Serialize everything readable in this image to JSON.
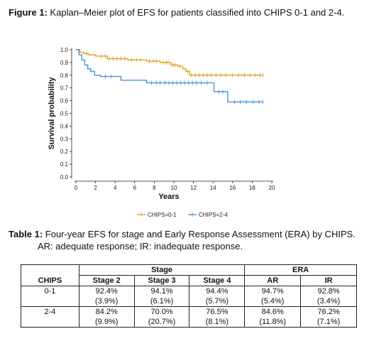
{
  "figure_caption": {
    "label": "Figure 1:",
    "text": " Kaplan–Meier plot of EFS for patients classified into CHIPS 0-1 and 2-4."
  },
  "table_caption": {
    "label": "Table 1:",
    "text": " Four-year EFS for stage and Early Response Assessment (ERA) by CHIPS.",
    "line2": "AR: adequate response; IR: inadequate response."
  },
  "chart_data": {
    "type": "line",
    "xlabel": "Years",
    "ylabel": "Survival probability",
    "xlim": [
      0,
      20
    ],
    "ylim": [
      0,
      1
    ],
    "x_ticks": [
      "0",
      "2",
      "4",
      "6",
      "8",
      "10",
      "12",
      "14",
      "16",
      "18",
      "20"
    ],
    "y_ticks": [
      "0.0",
      "0.1",
      "0.2",
      "0.3",
      "0.4",
      "0.5",
      "0.6",
      "0.7",
      "0.8",
      "0.9",
      "1.0"
    ],
    "legend_position": "bottom",
    "step": true,
    "series": [
      {
        "name": "CHIPS=0-1",
        "color": "#DAA520",
        "x": [
          0,
          0.4,
          0.8,
          1.3,
          2.0,
          3.2,
          5.3,
          7.2,
          8.6,
          9.7,
          10.4,
          10.9,
          11.2,
          11.6,
          19.1
        ],
        "y": [
          1.0,
          0.98,
          0.97,
          0.96,
          0.95,
          0.93,
          0.92,
          0.91,
          0.9,
          0.88,
          0.87,
          0.85,
          0.83,
          0.8,
          0.8
        ],
        "censor_x": [
          1.1,
          2.6,
          3.0,
          3.4,
          3.8,
          4.2,
          4.6,
          5.0,
          5.7,
          6.2,
          6.6,
          7.5,
          7.9,
          8.2,
          8.9,
          9.2,
          9.4,
          9.9,
          10.1,
          10.6,
          11.4,
          11.8,
          12.2,
          12.6,
          13.0,
          13.4,
          13.8,
          14.3,
          14.8,
          15.3,
          16.0,
          16.6,
          17.2,
          17.8,
          18.3,
          18.8,
          19.1
        ]
      },
      {
        "name": "CHIPS=2-4",
        "color": "#4A90D9",
        "x": [
          0,
          0.3,
          0.6,
          0.9,
          1.2,
          1.5,
          1.9,
          2.5,
          4.6,
          7.2,
          14.1,
          15.5,
          19.1
        ],
        "y": [
          1.0,
          0.96,
          0.92,
          0.88,
          0.85,
          0.83,
          0.8,
          0.79,
          0.76,
          0.74,
          0.67,
          0.59,
          0.59
        ],
        "censor_x": [
          3.0,
          3.6,
          7.7,
          8.2,
          8.6,
          9.1,
          9.5,
          9.9,
          10.3,
          10.7,
          11.1,
          11.5,
          11.9,
          12.3,
          12.8,
          13.4,
          14.6,
          15.0,
          16.2,
          16.8,
          17.4,
          18.1,
          18.7,
          19.1
        ]
      }
    ]
  },
  "table": {
    "chips_header": "CHIPS",
    "stage_group": "Stage",
    "era_group": "ERA",
    "subheaders": [
      "Stage 2",
      "Stage 3",
      "Stage 4",
      "AR",
      "IR"
    ],
    "rows": [
      {
        "label": "0-1",
        "values": [
          "92.4%",
          "94.1%",
          "94.4%",
          "94.7%",
          "92.8%"
        ],
        "ses": [
          "(3.9%)",
          "(6.1%)",
          "(5.7%)",
          "(5.4%)",
          "(3.4%)"
        ]
      },
      {
        "label": "2-4",
        "values": [
          "84.2%",
          "70.0%",
          "76.5%",
          "84.6%",
          "76.2%"
        ],
        "ses": [
          "(9.9%)",
          "(20.7%)",
          "(8.1%)",
          "(11.8%)",
          "(7.1%)"
        ]
      }
    ]
  }
}
